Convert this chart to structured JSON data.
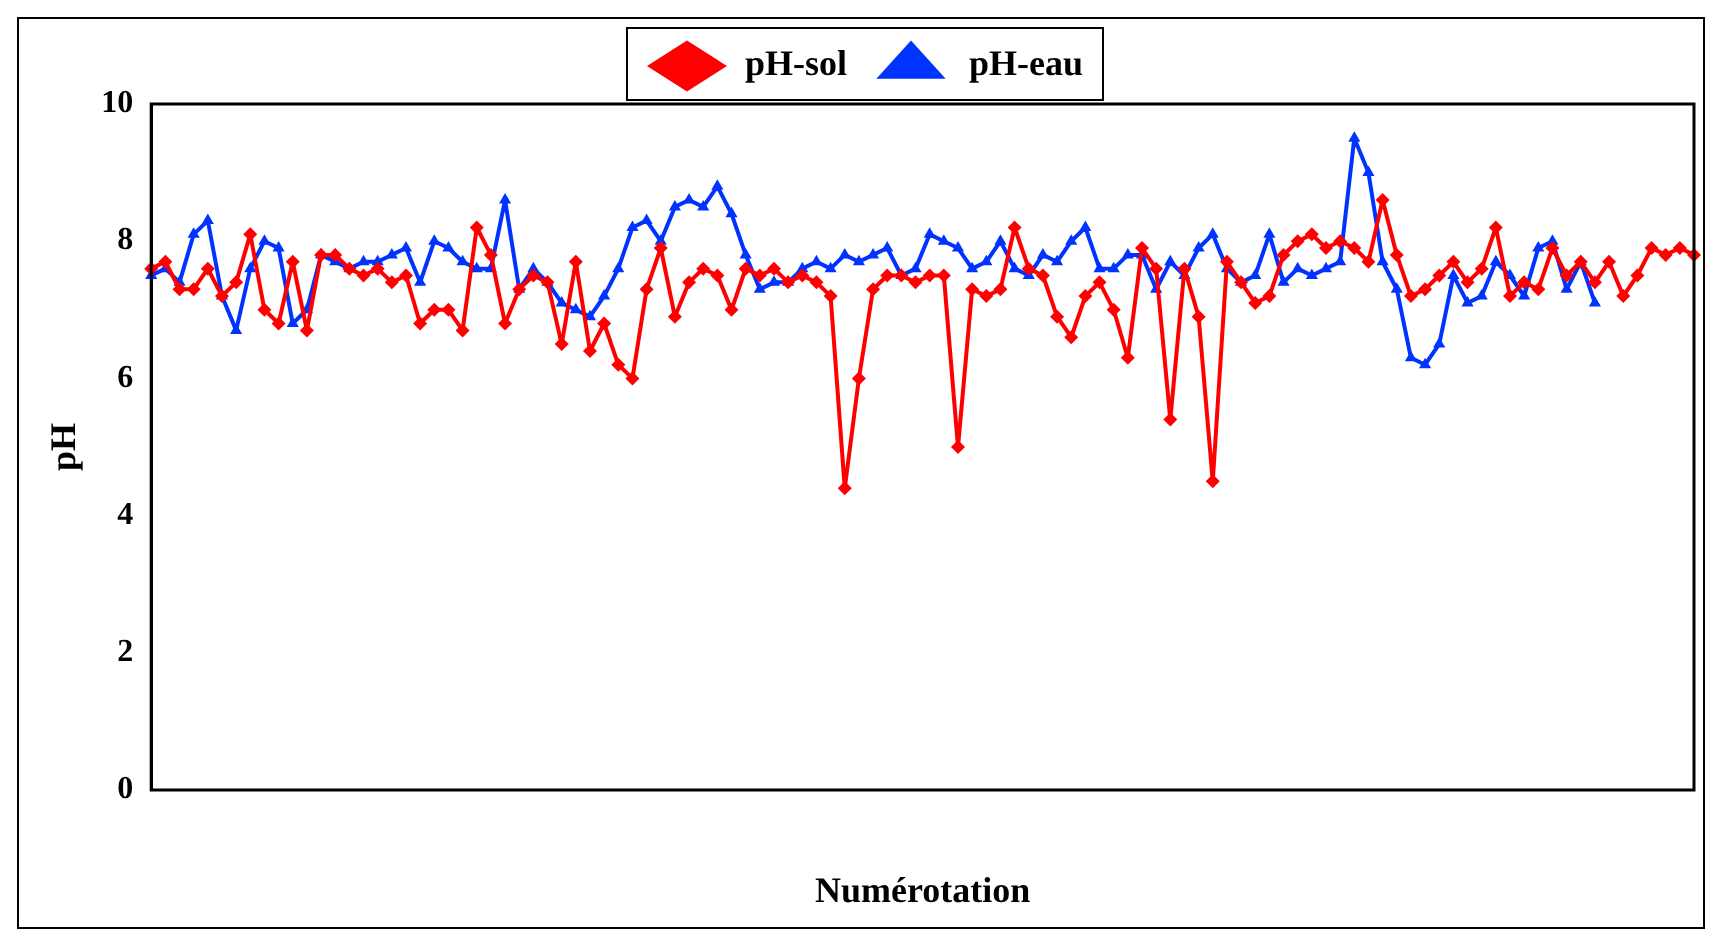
{
  "chart_data": {
    "type": "line",
    "xlabel": "Numérotation",
    "ylabel": "pH",
    "categories": [
      null,
      null,
      null,
      null,
      null,
      null,
      null,
      null,
      null,
      null,
      null,
      null,
      null,
      null,
      null,
      null,
      null,
      null,
      null,
      null,
      null,
      null,
      null,
      null,
      null,
      null,
      null,
      null,
      null,
      null,
      null,
      null,
      null,
      null,
      null,
      null,
      null,
      null,
      null,
      null,
      null,
      null,
      null,
      null,
      null,
      null,
      null,
      null,
      null,
      null,
      null,
      null,
      null,
      null,
      null,
      null,
      null,
      null,
      null,
      null,
      null,
      null,
      null,
      null,
      null,
      null,
      null,
      null,
      null,
      null,
      null,
      null,
      null,
      null,
      null,
      null,
      null,
      null,
      null,
      null,
      null,
      null,
      null,
      null,
      null,
      null,
      null,
      null,
      null,
      null,
      null,
      null,
      null,
      null,
      null,
      null,
      null,
      null,
      null,
      null,
      null,
      null,
      null,
      null,
      null,
      null,
      null,
      null,
      null,
      null
    ],
    "series": [
      {
        "name": "pH-sol",
        "color": "#ff0000",
        "marker": "diamond",
        "values": [
          7.6,
          7.7,
          7.3,
          7.3,
          7.6,
          7.2,
          7.4,
          8.1,
          7.0,
          6.8,
          7.7,
          6.7,
          7.8,
          7.8,
          7.6,
          7.5,
          7.6,
          7.4,
          7.5,
          6.8,
          7.0,
          7.0,
          6.7,
          8.2,
          7.8,
          6.8,
          7.3,
          7.5,
          7.4,
          6.5,
          7.7,
          6.4,
          6.8,
          6.2,
          6.0,
          7.3,
          7.9,
          6.9,
          7.4,
          7.6,
          7.5,
          7.0,
          7.6,
          7.5,
          7.6,
          7.4,
          7.5,
          7.4,
          7.2,
          4.4,
          6.0,
          7.3,
          7.5,
          7.5,
          7.4,
          7.5,
          7.5,
          5.0,
          7.3,
          7.2,
          7.3,
          8.2,
          7.6,
          7.5,
          6.9,
          6.6,
          7.2,
          7.4,
          7.0,
          6.3,
          7.9,
          7.6,
          5.4,
          7.6,
          6.9,
          4.5,
          7.7,
          7.4,
          7.1,
          7.2,
          7.8,
          8.0,
          8.1,
          7.9,
          8.0,
          7.9,
          7.7,
          8.6,
          7.8,
          7.2,
          7.3,
          7.5,
          7.7,
          7.4,
          7.6,
          8.2,
          7.2,
          7.4,
          7.3,
          7.9,
          7.5,
          7.7,
          7.4,
          7.7,
          7.2,
          7.5,
          7.9,
          7.8,
          7.9,
          7.8
        ]
      },
      {
        "name": "pH-eau",
        "color": "#0033ff",
        "marker": "triangle",
        "values": [
          7.5,
          7.6,
          7.4,
          8.1,
          8.3,
          7.2,
          6.7,
          7.6,
          8.0,
          7.9,
          6.8,
          7.0,
          7.8,
          7.7,
          7.6,
          7.7,
          7.7,
          7.8,
          7.9,
          7.4,
          8.0,
          7.9,
          7.7,
          7.6,
          7.6,
          8.6,
          7.3,
          7.6,
          7.4,
          7.1,
          7.0,
          6.9,
          7.2,
          7.6,
          8.2,
          8.3,
          8.0,
          8.5,
          8.6,
          8.5,
          8.8,
          8.4,
          7.8,
          7.3,
          7.4,
          7.4,
          7.6,
          7.7,
          7.6,
          7.8,
          7.7,
          7.8,
          7.9,
          7.5,
          7.6,
          8.1,
          8.0,
          7.9,
          7.6,
          7.7,
          8.0,
          7.6,
          7.5,
          7.8,
          7.7,
          8.0,
          8.2,
          7.6,
          7.6,
          7.8,
          7.8,
          7.3,
          7.7,
          7.5,
          7.9,
          8.1,
          7.6,
          7.4,
          7.5,
          8.1,
          7.4,
          7.6,
          7.5,
          7.6,
          7.7,
          9.5,
          9.0,
          7.7,
          7.3,
          6.3,
          6.2,
          6.5,
          7.5,
          7.1,
          7.2,
          7.7,
          7.5,
          7.2,
          7.9,
          8.0,
          7.3,
          7.7,
          7.1,
          null,
          null,
          null,
          null,
          null,
          null,
          null
        ]
      }
    ],
    "ylim": [
      0,
      10
    ],
    "yticks": [
      0,
      2,
      4,
      6,
      8,
      10
    ],
    "grid": false,
    "legend": "top",
    "line_style": "solid"
  }
}
